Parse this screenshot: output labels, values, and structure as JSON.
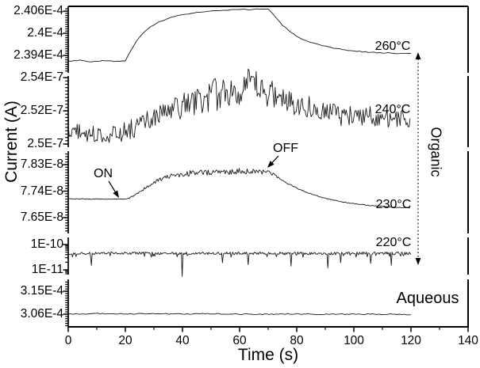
{
  "chart_data": {
    "type": "line",
    "title": "",
    "xlabel": "Time (s)",
    "ylabel": "Current (A)",
    "background": "#ffffff",
    "line_color": "#1a1a1a",
    "x": {
      "min": 0,
      "max": 140,
      "major_step": 20,
      "minor_step": 10,
      "tick_labels": [
        "0",
        "20",
        "40",
        "60",
        "80",
        "100",
        "120",
        "140"
      ],
      "data_range": [
        0,
        120
      ]
    },
    "annotations": {
      "on": {
        "text": "ON",
        "arrow_target_time_s": 20
      },
      "off": {
        "text": "OFF",
        "arrow_target_time_s": 70
      },
      "organic": {
        "text": "Organic"
      }
    },
    "panels": [
      {
        "label": "260°C",
        "scale": "linear",
        "unit": "A",
        "ylim": [
          0.00023893,
          0.00024073
        ],
        "ticks": [
          {
            "value": 0.0002406,
            "label": "2.406E-4"
          },
          {
            "value": 0.00024,
            "label": "2.4E-4"
          },
          {
            "value": 0.0002394,
            "label": "2.394E-4"
          }
        ],
        "minor_divisions": 10,
        "dt": 1.0,
        "keypoints": [
          [
            0,
            0.00023925
          ],
          [
            4,
            0.00023927
          ],
          [
            8,
            0.00023923
          ],
          [
            12,
            0.00023926
          ],
          [
            16,
            0.00023924
          ],
          [
            20,
            0.00023925
          ],
          [
            21,
            0.0002394
          ],
          [
            23,
            0.00023968
          ],
          [
            25,
            0.0002399
          ],
          [
            28,
            0.00024013
          ],
          [
            31,
            0.00024028
          ],
          [
            34,
            0.00024038
          ],
          [
            38,
            0.00024047
          ],
          [
            42,
            0.00024053
          ],
          [
            46,
            0.00024057
          ],
          [
            50,
            0.0002406
          ],
          [
            55,
            0.00024062
          ],
          [
            60,
            0.00024064
          ],
          [
            65,
            0.00024065
          ],
          [
            70,
            0.00024066
          ],
          [
            71,
            0.00024058
          ],
          [
            73,
            0.0002404
          ],
          [
            75,
            0.00024022
          ],
          [
            78,
            0.00024002
          ],
          [
            81,
            0.00023988
          ],
          [
            84,
            0.00023977
          ],
          [
            88,
            0.00023968
          ],
          [
            92,
            0.00023961
          ],
          [
            96,
            0.00023956
          ],
          [
            100,
            0.00023952
          ],
          [
            105,
            0.00023949
          ],
          [
            110,
            0.00023947
          ],
          [
            115,
            0.00023946
          ],
          [
            120,
            0.00023945
          ]
        ],
        "noise": [
          [
            0,
            1.2e-08
          ],
          [
            120,
            1.2e-08
          ]
        ],
        "spikes": []
      },
      {
        "label": "240°C",
        "scale": "linear",
        "unit": "A",
        "ylim": [
          2.4981e-07,
          2.541e-07
        ],
        "ticks": [
          {
            "value": 2.54e-07,
            "label": "2.54E-7"
          },
          {
            "value": 2.52e-07,
            "label": "2.52E-7"
          },
          {
            "value": 2.5e-07,
            "label": "2.5E-7"
          }
        ],
        "minor_divisions": 10,
        "dt": 0.35,
        "keypoints": [
          [
            0,
            2.5085e-07
          ],
          [
            3,
            2.5075e-07
          ],
          [
            6,
            2.5065e-07
          ],
          [
            9,
            2.5058e-07
          ],
          [
            12,
            2.5055e-07
          ],
          [
            15,
            2.5058e-07
          ],
          [
            18,
            2.5065e-07
          ],
          [
            21,
            2.5082e-07
          ],
          [
            24,
            2.5105e-07
          ],
          [
            27,
            2.513e-07
          ],
          [
            30,
            2.5155e-07
          ],
          [
            33,
            2.5178e-07
          ],
          [
            36,
            2.52e-07
          ],
          [
            40,
            2.5228e-07
          ],
          [
            44,
            2.5252e-07
          ],
          [
            48,
            2.5275e-07
          ],
          [
            52,
            2.5298e-07
          ],
          [
            56,
            2.532e-07
          ],
          [
            59,
            2.5338e-07
          ],
          [
            62,
            2.5345e-07
          ],
          [
            65,
            2.534e-07
          ],
          [
            68,
            2.5325e-07
          ],
          [
            71,
            2.5305e-07
          ],
          [
            74,
            2.5282e-07
          ],
          [
            77,
            2.5262e-07
          ],
          [
            80,
            2.5245e-07
          ],
          [
            84,
            2.5228e-07
          ],
          [
            88,
            2.5213e-07
          ],
          [
            92,
            2.52e-07
          ],
          [
            96,
            2.5188e-07
          ],
          [
            100,
            2.5178e-07
          ],
          [
            104,
            2.517e-07
          ],
          [
            108,
            2.5163e-07
          ],
          [
            112,
            2.5156e-07
          ],
          [
            116,
            2.515e-07
          ],
          [
            120,
            2.5145e-07
          ]
        ],
        "noise": [
          [
            0,
            5e-10
          ],
          [
            15,
            5e-10
          ],
          [
            30,
            7e-10
          ],
          [
            45,
            9e-10
          ],
          [
            55,
            1.1e-09
          ],
          [
            65,
            1.1e-09
          ],
          [
            75,
            8e-10
          ],
          [
            90,
            6e-10
          ],
          [
            120,
            6e-10
          ]
        ],
        "spikes": [
          [
            95.5,
            2.511e-07
          ],
          [
            96.2,
            2.5185e-07
          ],
          [
            98.5,
            2.5115e-07
          ],
          [
            99.2,
            2.518e-07
          ]
        ]
      },
      {
        "label": "230°C",
        "scale": "linear",
        "unit": "A",
        "ylim": [
          7.5963e-08,
          7.8757e-08
        ],
        "ticks": [
          {
            "value": 7.83e-08,
            "label": "7.83E-8"
          },
          {
            "value": 7.74e-08,
            "label": "7.74E-8"
          },
          {
            "value": 7.65e-08,
            "label": "7.65E-8"
          }
        ],
        "minor_divisions": 10,
        "dt": 0.35,
        "keypoints": [
          [
            0,
            7.714e-08
          ],
          [
            4,
            7.7135e-08
          ],
          [
            8,
            7.713e-08
          ],
          [
            12,
            7.7135e-08
          ],
          [
            16,
            7.713e-08
          ],
          [
            20,
            7.7125e-08
          ],
          [
            21,
            7.715e-08
          ],
          [
            22,
            7.72e-08
          ],
          [
            24,
            7.731e-08
          ],
          [
            26,
            7.744e-08
          ],
          [
            28,
            7.757e-08
          ],
          [
            30,
            7.769e-08
          ],
          [
            32,
            7.778e-08
          ],
          [
            34,
            7.785e-08
          ],
          [
            36,
            7.791e-08
          ],
          [
            39,
            7.796e-08
          ],
          [
            42,
            7.8e-08
          ],
          [
            46,
            7.803e-08
          ],
          [
            50,
            7.805e-08
          ],
          [
            55,
            7.806e-08
          ],
          [
            60,
            7.807e-08
          ],
          [
            65,
            7.806e-08
          ],
          [
            70,
            7.807e-08
          ],
          [
            71,
            7.802e-08
          ],
          [
            73,
            7.789e-08
          ],
          [
            75,
            7.776e-08
          ],
          [
            78,
            7.76e-08
          ],
          [
            81,
            7.746e-08
          ],
          [
            84,
            7.734e-08
          ],
          [
            87,
            7.724e-08
          ],
          [
            90,
            7.716e-08
          ],
          [
            94,
            7.707e-08
          ],
          [
            98,
            7.7e-08
          ],
          [
            102,
            7.695e-08
          ],
          [
            106,
            7.691e-08
          ],
          [
            110,
            7.688e-08
          ],
          [
            115,
            7.685e-08
          ],
          [
            120,
            7.683e-08
          ]
        ],
        "noise": [
          [
            0,
            1.2e-11
          ],
          [
            19,
            1.2e-11
          ],
          [
            23,
            2.5e-11
          ],
          [
            30,
            6e-11
          ],
          [
            38,
            9e-11
          ],
          [
            45,
            1.05e-10
          ],
          [
            60,
            1.05e-10
          ],
          [
            70,
            9e-11
          ],
          [
            73,
            3e-11
          ],
          [
            80,
            1.5e-11
          ],
          [
            100,
            1.2e-11
          ],
          [
            120,
            1.2e-11
          ]
        ],
        "spikes": []
      },
      {
        "label": "220°C",
        "scale": "log",
        "unit": "A",
        "ylim": [
          6.5e-12,
          1.91e-10
        ],
        "ticks": [
          {
            "value": 1e-10,
            "label": "1E-10"
          },
          {
            "value": 1e-11,
            "label": "1E-11"
          }
        ],
        "minor_divisions": 9,
        "dt": 0.3,
        "keypoints": [
          [
            0,
            4.5e-11
          ],
          [
            120,
            4.5e-11
          ]
        ],
        "noise": [
          [
            0,
            0.055
          ],
          [
            120,
            0.055
          ]
        ],
        "spikes": [
          [
            8,
            1.5e-11
          ],
          [
            40,
            5.5e-12
          ],
          [
            54,
            1.9e-11
          ],
          [
            63,
            1.6e-11
          ],
          [
            78,
            1.4e-11
          ],
          [
            91,
            1.2e-11
          ],
          [
            95.5,
            1.9e-11
          ],
          [
            106,
            1.8e-11
          ],
          [
            113,
            1.5e-11
          ]
        ]
      },
      {
        "label": "Aqueous",
        "scale": "linear",
        "unit": "A",
        "ylim": [
          0.00030103,
          0.00031966
        ],
        "ticks": [
          {
            "value": 0.000315,
            "label": "3.15E-4"
          },
          {
            "value": 0.000306,
            "label": "3.06E-4"
          }
        ],
        "minor_divisions": 10,
        "dt": 0.8,
        "keypoints": [
          [
            0,
            0.000306
          ],
          [
            10,
            0.0003062
          ],
          [
            20,
            0.0003061
          ],
          [
            30,
            0.0003062
          ],
          [
            40,
            0.000306
          ],
          [
            50,
            0.0003061
          ],
          [
            60,
            0.000306
          ],
          [
            70,
            0.000306
          ],
          [
            80,
            0.0003061
          ],
          [
            90,
            0.0003059
          ],
          [
            100,
            0.0003061
          ],
          [
            110,
            0.000306
          ],
          [
            120,
            0.0003059
          ]
        ],
        "noise": [
          [
            0,
            2.2e-07
          ],
          [
            120,
            2.2e-07
          ]
        ],
        "spikes": []
      }
    ]
  }
}
